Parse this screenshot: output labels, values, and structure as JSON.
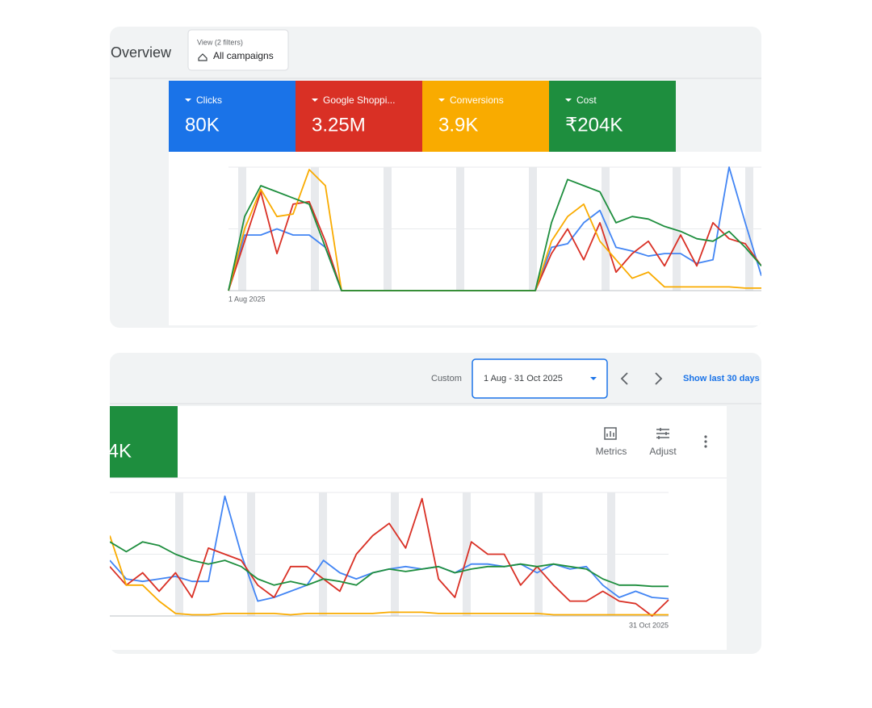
{
  "header": {
    "title": "Overview",
    "filter_caption": "View (2 filters)",
    "filter_value": "All campaigns"
  },
  "scorecards": [
    {
      "label": "Clicks",
      "value": "80K",
      "color": "#1a73e8"
    },
    {
      "label": "Google Shoppi...",
      "value": "3.25M",
      "color": "#d93025"
    },
    {
      "label": "Conversions",
      "value": "3.9K",
      "color": "#f9ab00"
    },
    {
      "label": "Cost",
      "value": "₹204K",
      "color": "#1e8e3e"
    }
  ],
  "date_bar": {
    "mode": "Custom",
    "range": "1 Aug - 31 Oct 2025",
    "link": "Show last 30 days"
  },
  "toolbar": {
    "metrics": "Metrics",
    "adjust": "Adjust"
  },
  "chart_data": [
    {
      "type": "line",
      "categories": [
        "1 Aug 2025",
        null,
        null,
        null,
        null,
        null,
        null,
        null,
        null,
        null,
        null,
        null,
        null,
        null,
        null,
        null,
        null,
        null,
        null,
        null,
        null,
        null,
        null,
        null,
        null,
        null,
        null,
        null,
        null,
        null,
        null,
        null,
        null,
        null
      ],
      "ylim": [
        0,
        100
      ],
      "series": [
        {
          "color": "#4285f4",
          "values": [
            0,
            45,
            45,
            50,
            45,
            45,
            35,
            0,
            0,
            0,
            0,
            0,
            0,
            0,
            0,
            0,
            0,
            0,
            0,
            0,
            35,
            38,
            55,
            65,
            35,
            32,
            28,
            30,
            30,
            22,
            25,
            100,
            55,
            12
          ]
        },
        {
          "color": "#d93025",
          "values": [
            0,
            40,
            80,
            30,
            70,
            72,
            40,
            0,
            0,
            0,
            0,
            0,
            0,
            0,
            0,
            0,
            0,
            0,
            0,
            0,
            30,
            50,
            25,
            55,
            15,
            30,
            40,
            20,
            45,
            20,
            55,
            42,
            38,
            20
          ]
        },
        {
          "color": "#f9ab00",
          "values": [
            0,
            50,
            82,
            60,
            62,
            98,
            85,
            0,
            0,
            0,
            0,
            0,
            0,
            0,
            0,
            0,
            0,
            0,
            0,
            0,
            40,
            60,
            70,
            40,
            25,
            10,
            15,
            3,
            3,
            3,
            3,
            3,
            2,
            2
          ]
        },
        {
          "color": "#1e8e3e",
          "values": [
            0,
            60,
            85,
            80,
            75,
            70,
            35,
            0,
            0,
            0,
            0,
            0,
            0,
            0,
            0,
            0,
            0,
            0,
            0,
            0,
            55,
            90,
            85,
            80,
            55,
            60,
            58,
            52,
            48,
            42,
            40,
            48,
            35,
            20
          ]
        }
      ]
    },
    {
      "type": "line",
      "categories": [
        null,
        null,
        null,
        null,
        null,
        null,
        null,
        null,
        null,
        null,
        null,
        null,
        null,
        null,
        null,
        null,
        null,
        null,
        null,
        null,
        null,
        null,
        null,
        null,
        null,
        null,
        null,
        null,
        null,
        null,
        null,
        null,
        null,
        null,
        "31 Oct 2025"
      ],
      "ylim": [
        0,
        100
      ],
      "series": [
        {
          "color": "#4285f4",
          "values": [
            45,
            30,
            28,
            30,
            32,
            28,
            28,
            97,
            50,
            12,
            15,
            20,
            25,
            45,
            35,
            30,
            35,
            38,
            40,
            38,
            40,
            35,
            42,
            42,
            40,
            42,
            35,
            42,
            38,
            40,
            25,
            15,
            20,
            15,
            14
          ]
        },
        {
          "color": "#d93025",
          "values": [
            40,
            25,
            35,
            20,
            35,
            15,
            55,
            50,
            45,
            25,
            15,
            40,
            40,
            30,
            20,
            50,
            65,
            75,
            55,
            95,
            30,
            15,
            60,
            50,
            50,
            25,
            40,
            25,
            12,
            12,
            20,
            12,
            10,
            0,
            13
          ]
        },
        {
          "color": "#f9ab00",
          "values": [
            65,
            25,
            25,
            12,
            2,
            1,
            1,
            2,
            2,
            2,
            2,
            1,
            2,
            2,
            2,
            2,
            2,
            3,
            3,
            3,
            2,
            2,
            2,
            2,
            2,
            2,
            2,
            1,
            1,
            1,
            1,
            1,
            1,
            1,
            1
          ]
        },
        {
          "color": "#1e8e3e",
          "values": [
            60,
            52,
            60,
            57,
            50,
            45,
            42,
            45,
            40,
            30,
            25,
            28,
            25,
            30,
            28,
            25,
            35,
            38,
            36,
            38,
            40,
            35,
            38,
            40,
            40,
            42,
            40,
            42,
            40,
            38,
            30,
            25,
            25,
            24,
            24
          ]
        }
      ]
    }
  ]
}
